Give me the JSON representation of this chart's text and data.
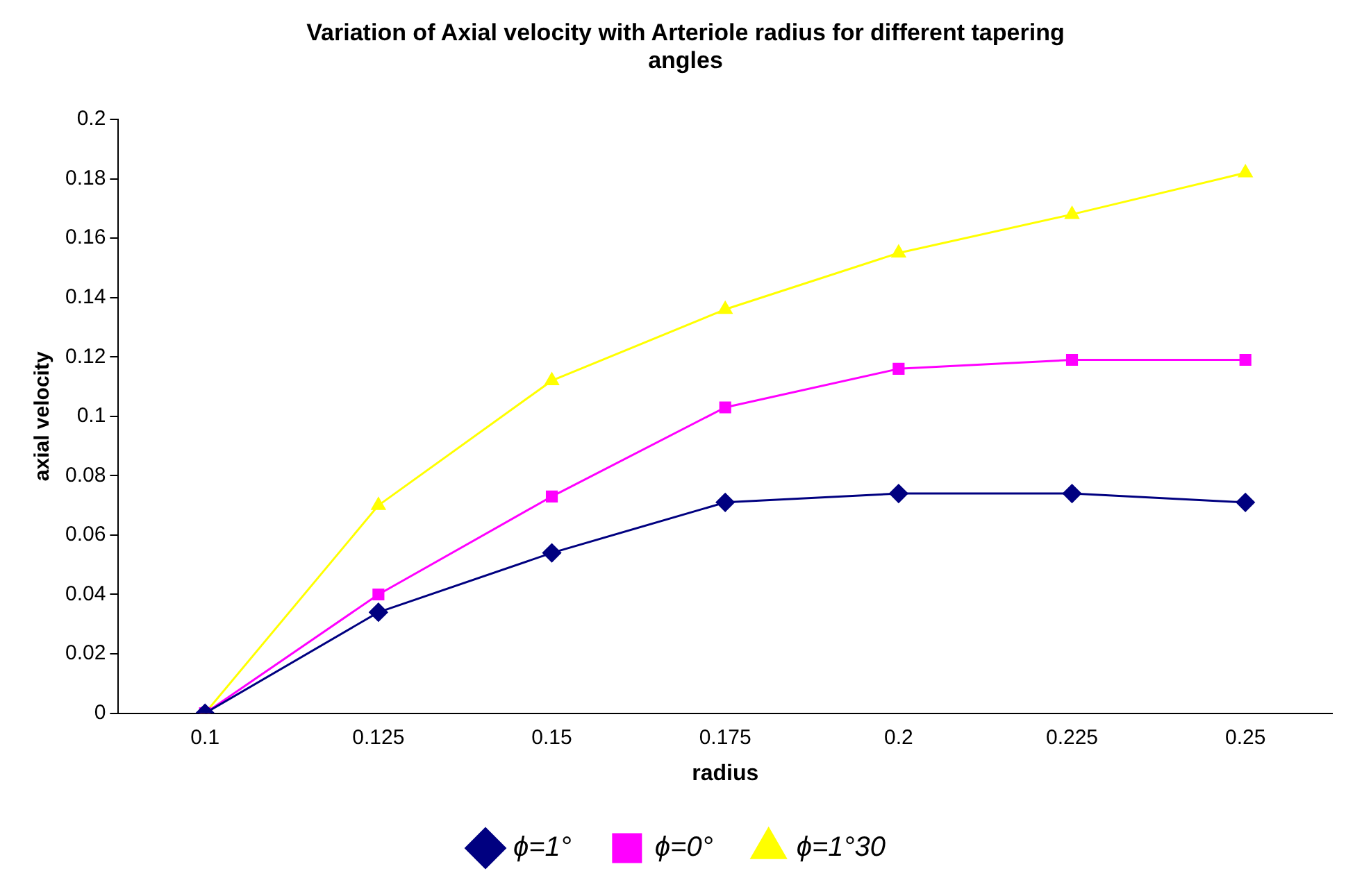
{
  "chart_data": {
    "type": "line",
    "title": "Variation of Axial velocity with Arteriole radius for different tapering angles",
    "xlabel": "radius",
    "ylabel": "axial velocity",
    "categories": [
      "0.1",
      "0.125",
      "0.15",
      "0.175",
      "0.2",
      "0.225",
      "0.25"
    ],
    "series": [
      {
        "name": "ϕ=1°",
        "color": "#000080",
        "marker": "diamond",
        "values": [
          0,
          0.034,
          0.054,
          0.071,
          0.074,
          0.074,
          0.071
        ]
      },
      {
        "name": "ϕ=0°",
        "color": "#ff00ff",
        "marker": "square",
        "values": [
          0,
          0.04,
          0.073,
          0.103,
          0.116,
          0.119,
          0.119
        ]
      },
      {
        "name": "ϕ=1°30",
        "color": "#ffff00",
        "marker": "triangle",
        "values": [
          0,
          0.07,
          0.112,
          0.136,
          0.155,
          0.168,
          0.182
        ]
      }
    ],
    "ylim": [
      0,
      0.2
    ],
    "yticks": [
      0,
      0.02,
      0.04,
      0.06,
      0.08,
      0.1,
      0.12,
      0.14,
      0.16,
      0.18,
      0.2
    ],
    "grid": false,
    "legend": "bottom"
  }
}
